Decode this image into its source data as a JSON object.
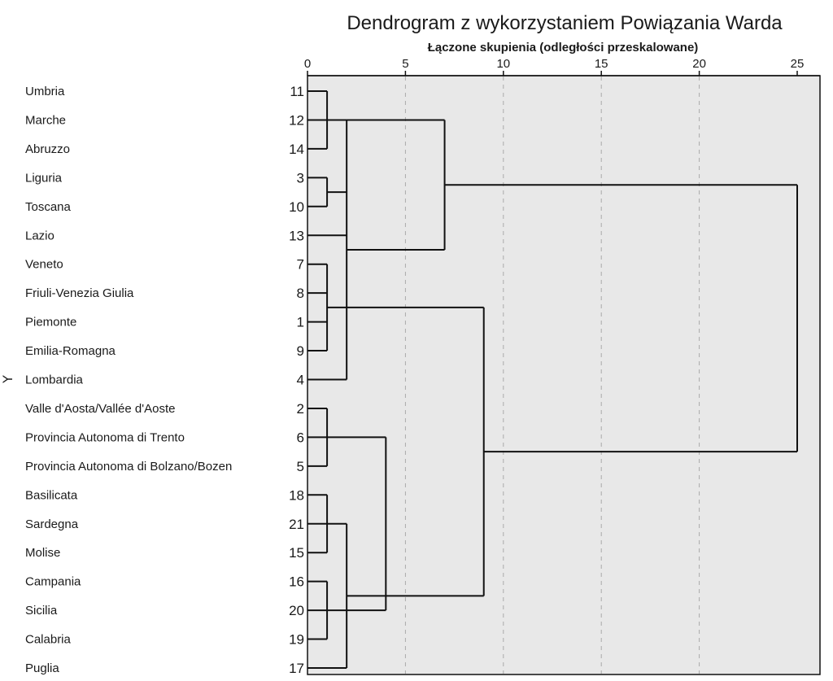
{
  "chart_data": {
    "type": "dendrogram",
    "title": "Dendrogram z wykorzystaniem Powiązania Warda",
    "subtitle": "Łączone skupienia (odległości przeskalowane)",
    "y_marker": "Y",
    "xlim": [
      0,
      25
    ],
    "x_ticks": [
      0,
      5,
      10,
      15,
      20,
      25
    ],
    "grid": "dashed vertical",
    "colors": {
      "plot_background": "#e8e8e8",
      "lines": "#111111",
      "grid": "#aaaaaa"
    },
    "leaves": [
      {
        "name": "Umbria",
        "id": "11"
      },
      {
        "name": "Marche",
        "id": "12"
      },
      {
        "name": "Abruzzo",
        "id": "14"
      },
      {
        "name": "Liguria",
        "id": "3"
      },
      {
        "name": "Toscana",
        "id": "10"
      },
      {
        "name": "Lazio",
        "id": "13"
      },
      {
        "name": "Veneto",
        "id": "7"
      },
      {
        "name": "Friuli-Venezia Giulia",
        "id": "8"
      },
      {
        "name": "Piemonte",
        "id": "1"
      },
      {
        "name": "Emilia-Romagna",
        "id": "9"
      },
      {
        "name": "Lombardia",
        "id": "4"
      },
      {
        "name": "Valle d'Aosta/Vallée d'Aoste",
        "id": "2"
      },
      {
        "name": "Provincia Autonoma di Trento",
        "id": "6"
      },
      {
        "name": "Provincia Autonoma di Bolzano/Bozen",
        "id": "5"
      },
      {
        "name": "Basilicata",
        "id": "18"
      },
      {
        "name": "Sardegna",
        "id": "21"
      },
      {
        "name": "Molise",
        "id": "15"
      },
      {
        "name": "Campania",
        "id": "16"
      },
      {
        "name": "Sicilia",
        "id": "20"
      },
      {
        "name": "Calabria",
        "id": "19"
      },
      {
        "name": "Puglia",
        "id": "17"
      }
    ],
    "merges": [
      {
        "members": [
          0,
          1,
          2
        ],
        "height": 1.0
      },
      {
        "members": [
          3,
          4
        ],
        "height": 1.0
      },
      {
        "members": [
          6,
          7,
          8,
          9
        ],
        "height": 1.0
      },
      {
        "members": [
          11,
          12,
          13
        ],
        "height": 1.0
      },
      {
        "members": [
          14,
          15,
          16
        ],
        "height": 1.0
      },
      {
        "members": [
          17,
          18,
          19
        ],
        "height": 1.0
      },
      {
        "members": [
          21,
          5,
          22,
          10
        ],
        "height": 2.0
      },
      {
        "members": [
          25,
          20
        ],
        "height": 2.0
      },
      {
        "members": [
          21,
          27
        ],
        "height": 7.0
      },
      {
        "members": [
          23,
          28
        ],
        "height": 9.0
      },
      {
        "members": [
          24,
          26
        ],
        "height": 4.0
      },
      {
        "members": [
          29,
          30
        ],
        "height": 25.0
      }
    ]
  }
}
